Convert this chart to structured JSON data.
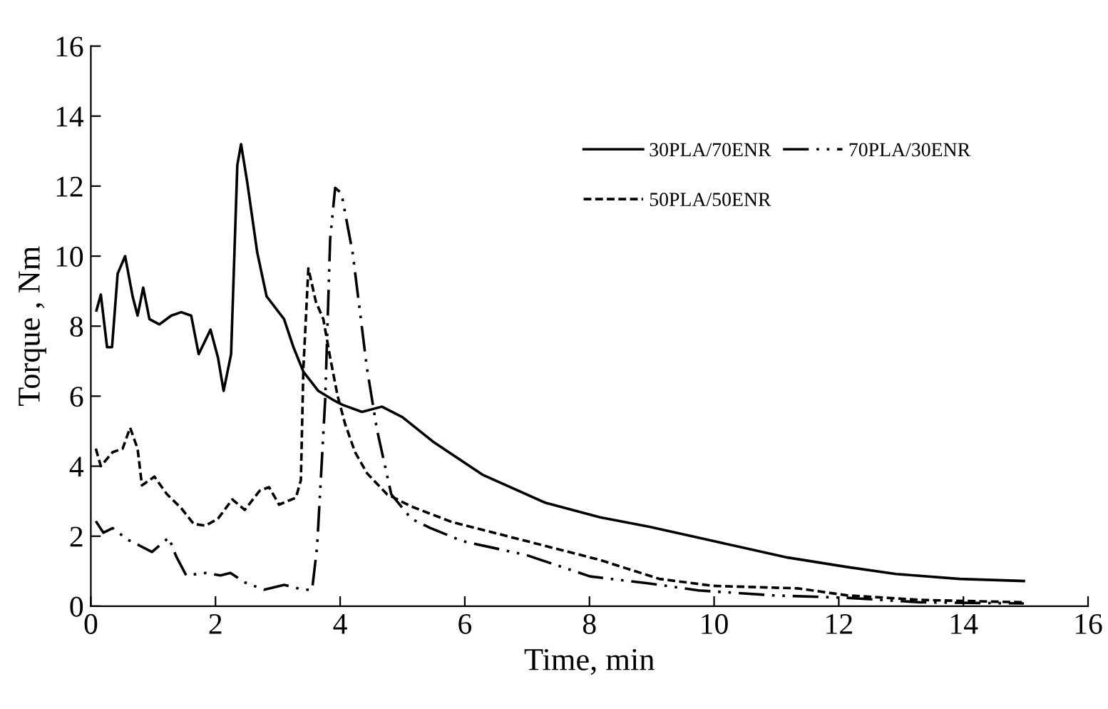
{
  "chart_data": {
    "type": "line",
    "xlabel": "Time, min",
    "ylabel": "Torque , Nm",
    "xlim": [
      0,
      16
    ],
    "ylim": [
      0,
      16
    ],
    "xticks": [
      0,
      2,
      4,
      6,
      8,
      10,
      12,
      14,
      16
    ],
    "yticks": [
      0,
      2,
      4,
      6,
      8,
      10,
      12,
      14,
      16
    ],
    "grid": false,
    "legend": "top right",
    "marker": "none",
    "series": [
      {
        "name": "30PLA/70ENR",
        "color": "#000000",
        "line_style": "solid",
        "x": [
          0.09,
          0.16,
          0.26,
          0.34,
          0.43,
          0.55,
          0.67,
          0.75,
          0.84,
          0.94,
          1.1,
          1.29,
          1.45,
          1.61,
          1.73,
          1.92,
          2.04,
          2.13,
          2.25,
          2.35,
          2.41,
          2.51,
          2.67,
          2.82,
          3.1,
          3.25,
          3.41,
          3.65,
          3.88,
          4.04,
          4.35,
          4.67,
          5.0,
          5.49,
          6.28,
          7.3,
          8.17,
          8.96,
          9.99,
          11.18,
          12.13,
          12.92,
          13.94,
          14.97
        ],
        "values": [
          8.45,
          8.9,
          7.4,
          7.4,
          9.5,
          10.0,
          8.85,
          8.3,
          9.1,
          8.2,
          8.05,
          8.3,
          8.4,
          8.3,
          7.2,
          7.9,
          7.1,
          6.15,
          7.2,
          12.6,
          13.2,
          12.1,
          10.1,
          8.85,
          8.2,
          7.4,
          6.7,
          6.15,
          5.9,
          5.75,
          5.55,
          5.7,
          5.4,
          4.7,
          3.76,
          2.95,
          2.54,
          2.27,
          1.86,
          1.39,
          1.12,
          0.92,
          0.78,
          0.72
        ]
      },
      {
        "name": "50PLA/50ENR",
        "color": "#000000",
        "line_style": "dashed",
        "x": [
          0.08,
          0.16,
          0.35,
          0.51,
          0.63,
          0.75,
          0.82,
          1.02,
          1.22,
          1.45,
          1.65,
          1.84,
          2.04,
          2.27,
          2.47,
          2.71,
          2.86,
          3.02,
          3.29,
          3.37,
          3.41,
          3.49,
          3.61,
          3.73,
          3.84,
          3.96,
          4.08,
          4.24,
          4.43,
          4.75,
          5.14,
          5.8,
          6.99,
          8.17,
          9.12,
          9.99,
          11.34,
          12.13,
          13.31,
          14.97
        ],
        "values": [
          4.5,
          4.0,
          4.4,
          4.5,
          5.1,
          4.5,
          3.45,
          3.7,
          3.2,
          2.8,
          2.35,
          2.3,
          2.5,
          3.05,
          2.75,
          3.3,
          3.4,
          2.9,
          3.1,
          3.6,
          6.8,
          9.65,
          8.7,
          8.2,
          7.1,
          6.0,
          5.2,
          4.4,
          3.8,
          3.2,
          2.85,
          2.4,
          1.86,
          1.32,
          0.78,
          0.58,
          0.51,
          0.31,
          0.18,
          0.11
        ]
      },
      {
        "name": "70PLA/30ENR",
        "color": "#000000",
        "line_style": "dashdot",
        "x": [
          0.08,
          0.2,
          0.35,
          0.59,
          0.75,
          0.98,
          1.25,
          1.37,
          1.53,
          1.84,
          2.08,
          2.24,
          2.47,
          2.78,
          3.1,
          3.41,
          3.55,
          3.63,
          3.76,
          3.84,
          3.92,
          4.02,
          4.2,
          4.43,
          4.59,
          4.82,
          5.14,
          5.45,
          5.96,
          6.99,
          8.01,
          8.96,
          9.75,
          10.94,
          12.13,
          13.31,
          14.97
        ],
        "values": [
          2.43,
          2.1,
          2.23,
          1.9,
          1.76,
          1.55,
          1.96,
          1.42,
          0.88,
          0.95,
          0.88,
          0.95,
          0.68,
          0.47,
          0.61,
          0.47,
          0.47,
          1.69,
          5.9,
          10.5,
          11.95,
          11.8,
          10.1,
          6.8,
          5.05,
          3.2,
          2.5,
          2.23,
          1.86,
          1.46,
          0.85,
          0.65,
          0.45,
          0.31,
          0.24,
          0.11,
          0.08
        ]
      }
    ]
  }
}
